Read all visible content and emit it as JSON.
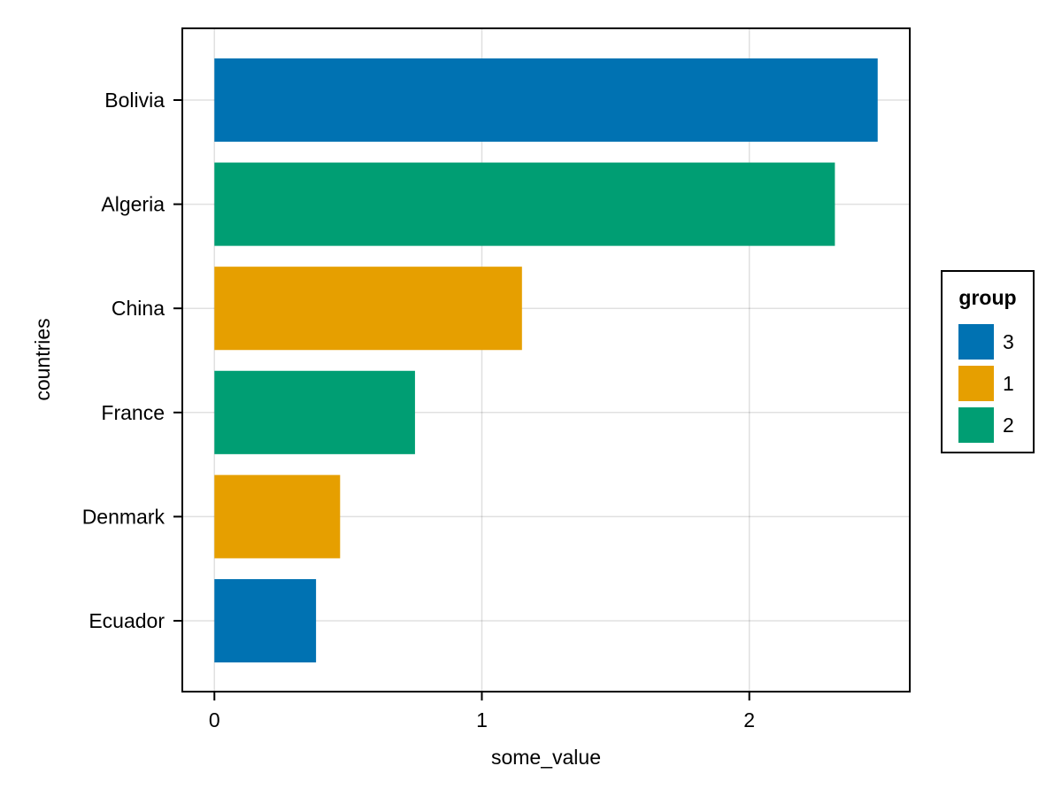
{
  "chart_data": {
    "type": "bar",
    "orientation": "horizontal",
    "title": "",
    "xlabel": "some_value",
    "ylabel": "countries",
    "xlim": [
      -0.12,
      2.6
    ],
    "xticks": [
      "0",
      "1",
      "2"
    ],
    "grid": true,
    "categories": [
      "Bolivia",
      "Algeria",
      "China",
      "France",
      "Denmark",
      "Ecuador"
    ],
    "values": [
      2.48,
      2.32,
      1.15,
      0.75,
      0.47,
      0.38
    ],
    "groups": [
      "3",
      "2",
      "1",
      "2",
      "1",
      "3"
    ],
    "legend": {
      "title": "group",
      "placement": "right",
      "entries": [
        {
          "label": "3",
          "color": "#0072b2"
        },
        {
          "label": "1",
          "color": "#e69f00"
        },
        {
          "label": "2",
          "color": "#009e73"
        }
      ]
    }
  }
}
